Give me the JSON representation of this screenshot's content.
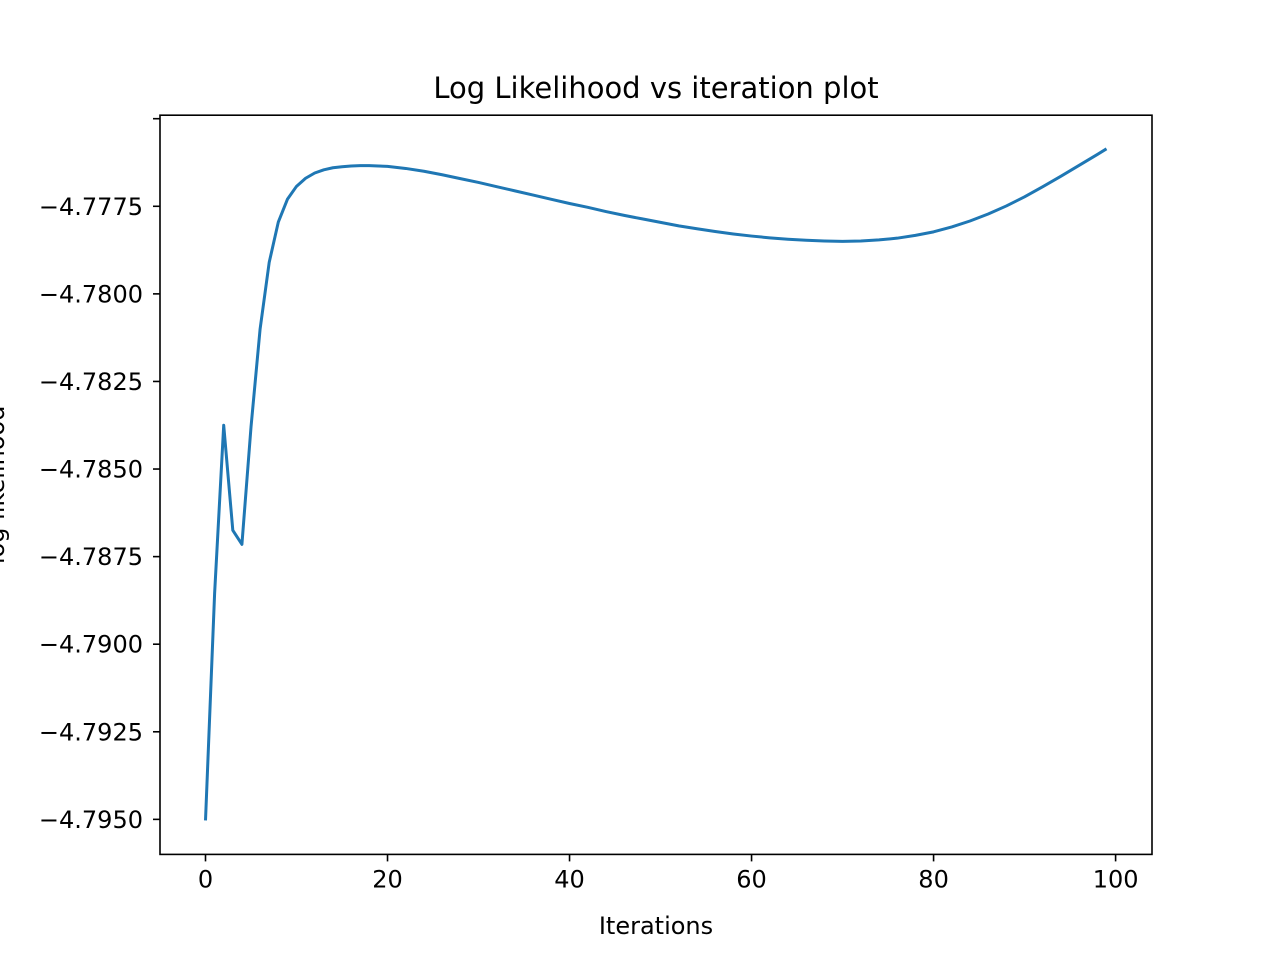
{
  "chart_data": {
    "type": "line",
    "title": "Log Likelihood vs iteration plot",
    "xlabel": "Iterations",
    "ylabel": "log likelihood",
    "xlim": [
      -5,
      104
    ],
    "ylim": [
      -4.796,
      -4.7749
    ],
    "xticks": [
      0,
      20,
      40,
      60,
      80,
      100
    ],
    "xtick_labels": [
      "0",
      "20",
      "40",
      "60",
      "80",
      "100"
    ],
    "yticks": [
      -4.775,
      -4.7775,
      -4.78,
      -4.7825,
      -4.785,
      -4.7875,
      -4.79,
      -4.7925,
      -4.795
    ],
    "ytick_labels": [
      "",
      "−4.7775",
      "−4.7800",
      "−4.7825",
      "−4.7850",
      "−4.7875",
      "−4.7900",
      "−4.7925",
      "−4.7950"
    ],
    "grid": false,
    "legend": null,
    "series": [
      {
        "color": "#1f77b4",
        "x": [
          0,
          1,
          2,
          3,
          4,
          5,
          6,
          7,
          8,
          9,
          10,
          11,
          12,
          13,
          14,
          15,
          16,
          17,
          18,
          19,
          20,
          22,
          24,
          26,
          28,
          30,
          32,
          34,
          36,
          38,
          40,
          42,
          44,
          46,
          48,
          50,
          52,
          54,
          56,
          58,
          60,
          62,
          64,
          66,
          68,
          70,
          72,
          74,
          76,
          78,
          80,
          82,
          84,
          86,
          88,
          90,
          92,
          94,
          96,
          98,
          99
        ],
        "y": [
          -4.79503,
          -4.78855,
          -4.78375,
          -4.78675,
          -4.78715,
          -4.7838,
          -4.781,
          -4.7791,
          -4.77795,
          -4.7773,
          -4.77693,
          -4.7767,
          -4.77655,
          -4.77646,
          -4.7764,
          -4.77637,
          -4.77635,
          -4.77634,
          -4.77634,
          -4.77635,
          -4.77636,
          -4.77642,
          -4.7765,
          -4.7766,
          -4.77671,
          -4.77682,
          -4.77694,
          -4.77706,
          -4.77718,
          -4.7773,
          -4.77742,
          -4.77753,
          -4.77765,
          -4.77776,
          -4.77786,
          -4.77796,
          -4.77806,
          -4.77814,
          -4.77822,
          -4.77829,
          -4.77835,
          -4.7784,
          -4.77844,
          -4.77847,
          -4.77849,
          -4.7785,
          -4.77849,
          -4.77846,
          -4.77841,
          -4.77833,
          -4.77823,
          -4.77809,
          -4.77792,
          -4.77772,
          -4.77749,
          -4.77723,
          -4.77694,
          -4.77664,
          -4.77633,
          -4.77602,
          -4.77586
        ]
      }
    ]
  }
}
